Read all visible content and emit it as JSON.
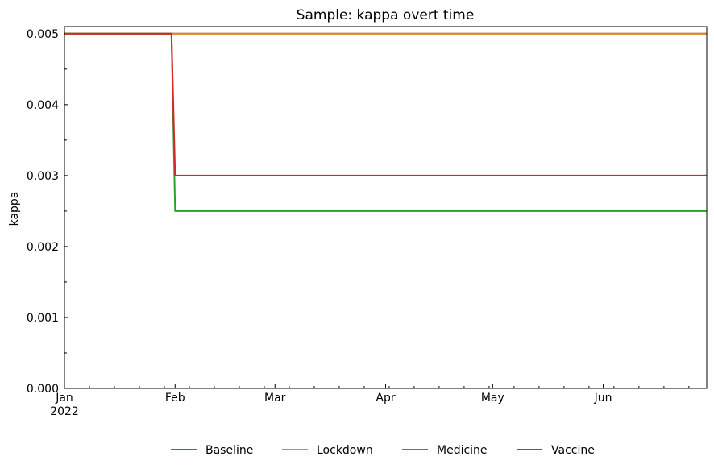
{
  "chart_data": {
    "type": "line",
    "title": "Sample: kappa overt time",
    "xlabel": "",
    "ylabel": "kappa",
    "x_type": "date",
    "xlim": [
      "2022-01-01",
      "2022-06-30"
    ],
    "ylim": [
      0,
      0.0051
    ],
    "yticks": [
      0.0,
      0.001,
      0.002,
      0.003,
      0.004,
      0.005
    ],
    "ytick_labels": [
      "0.000",
      "0.001",
      "0.002",
      "0.003",
      "0.004",
      "0.005"
    ],
    "xticks": [
      "2022-01-01",
      "2022-02-01",
      "2022-03-01",
      "2022-04-01",
      "2022-05-01",
      "2022-06-01"
    ],
    "xtick_labels": [
      "Jan",
      "Feb",
      "Mar",
      "Apr",
      "May",
      "Jun"
    ],
    "xtick_year_label": "2022",
    "grid": false,
    "legend_position": "bottom-center",
    "series": [
      {
        "name": "Baseline",
        "color": "#1f77b4",
        "x": [
          "2022-01-01",
          "2022-06-30"
        ],
        "y": [
          0.005,
          0.005
        ]
      },
      {
        "name": "Lockdown",
        "color": "#ff7f0e",
        "x": [
          "2022-01-01",
          "2022-06-30"
        ],
        "y": [
          0.005,
          0.005
        ]
      },
      {
        "name": "Medicine",
        "color": "#2ca02c",
        "x": [
          "2022-01-01",
          "2022-01-31",
          "2022-02-01",
          "2022-06-30"
        ],
        "y": [
          0.005,
          0.005,
          0.0025,
          0.0025
        ]
      },
      {
        "name": "Vaccine",
        "color": "#d62728",
        "x": [
          "2022-01-01",
          "2022-01-31",
          "2022-02-01",
          "2022-06-30"
        ],
        "y": [
          0.005,
          0.005,
          0.003,
          0.003
        ]
      }
    ]
  }
}
